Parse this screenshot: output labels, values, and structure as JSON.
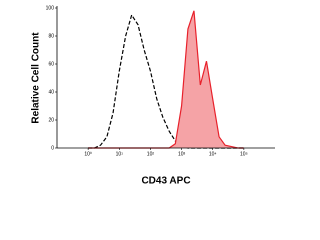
{
  "chart_data": {
    "type": "line",
    "y_label": "Relative Cell Count",
    "x_label": "CD43 APC",
    "x": [
      1,
      1.6,
      2.5,
      4,
      6.3,
      10,
      16,
      25,
      40,
      63,
      100,
      160,
      250,
      400,
      630,
      1000,
      1600,
      2500,
      4000,
      6300,
      10000,
      16000,
      25000,
      40000,
      63000,
      100000
    ],
    "series": [
      {
        "color": "#000000",
        "dashed": true,
        "values": [
          0,
          0,
          2,
          8,
          25,
          55,
          80,
          95,
          88,
          70,
          55,
          35,
          22,
          12,
          5,
          2,
          0,
          0,
          0,
          0,
          0,
          0,
          0,
          0,
          0,
          0
        ]
      },
      {
        "color": "#e8212b",
        "fill": "#f5a3a6",
        "dashed": false,
        "values": [
          0,
          0,
          0,
          0,
          0,
          0,
          0,
          0,
          0,
          0,
          0,
          0,
          0,
          0,
          3,
          30,
          85,
          98,
          45,
          62,
          35,
          8,
          2,
          1,
          0,
          0
        ]
      }
    ],
    "xlim": [
      0.1,
      1000000
    ],
    "xlog": true,
    "xticks": [
      {
        "value": 1,
        "label": "10⁰"
      },
      {
        "value": 10,
        "label": "10¹"
      },
      {
        "value": 100,
        "label": "10²"
      },
      {
        "value": 1000,
        "label": "10³"
      },
      {
        "value": 10000,
        "label": "10⁴"
      },
      {
        "value": 100000,
        "label": "10⁵"
      }
    ],
    "ylim": [
      0,
      100
    ],
    "yticks": [
      0,
      20,
      40,
      60,
      80,
      100
    ]
  }
}
